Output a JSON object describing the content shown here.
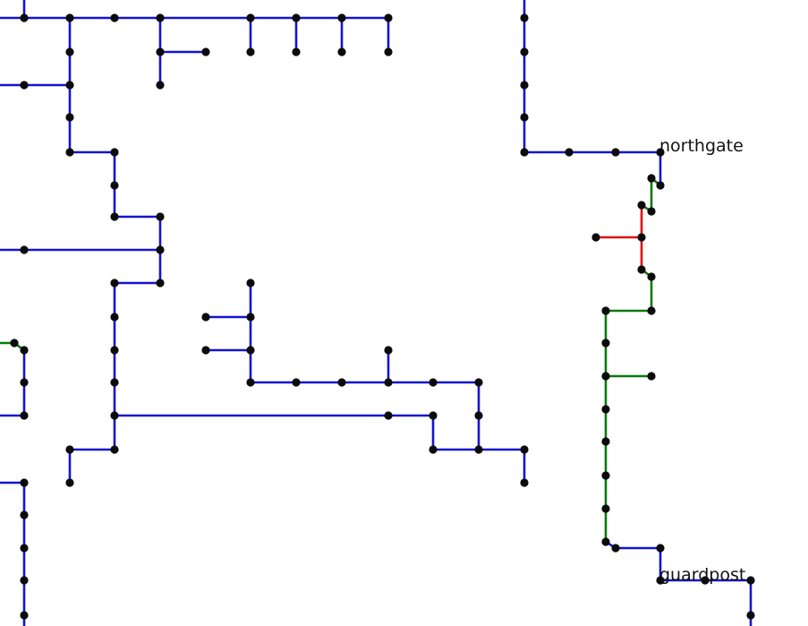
{
  "map": {
    "colors": {
      "blue": "#1414d2",
      "green": "#0a7a0a",
      "red": "#e01010",
      "node": "#0b0b0b",
      "label": "#111111"
    },
    "labels": {
      "northgate": "northgate",
      "guardpost": "guardpost"
    }
  }
}
